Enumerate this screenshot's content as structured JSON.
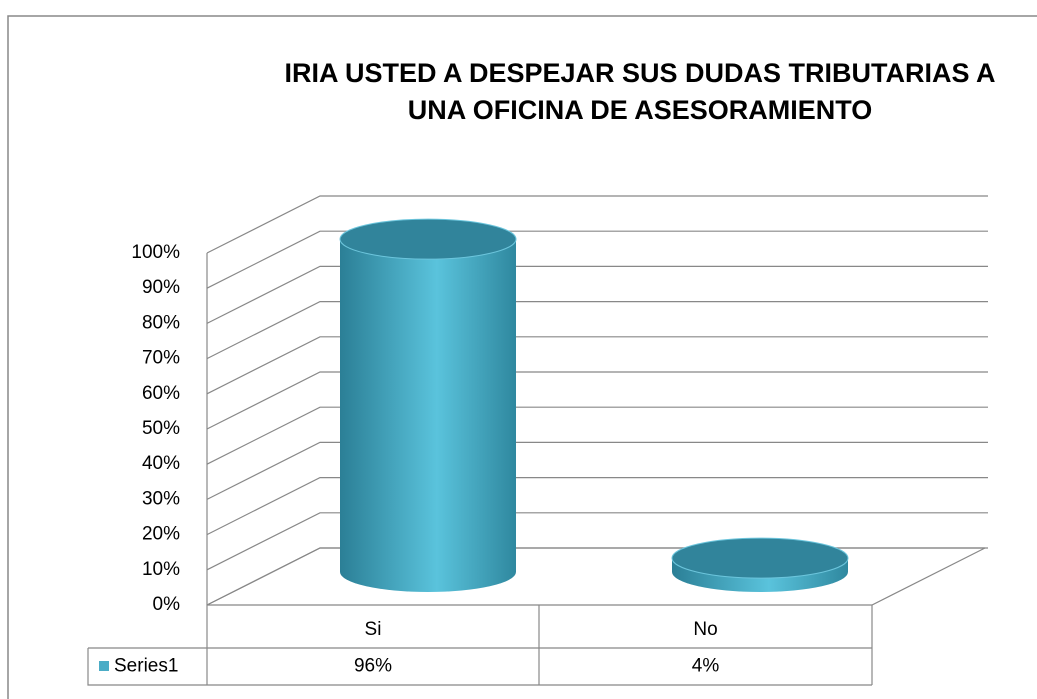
{
  "chart_data": {
    "type": "bar3d",
    "title": [
      "IRIA USTED A DESPEJAR SUS DUDAS TRIBUTARIAS A",
      "UNA OFICINA DE ASESORAMIENTO"
    ],
    "categories": [
      "Si",
      "No"
    ],
    "series": [
      {
        "name": "Series1",
        "color": "#4bacc6",
        "values": [
          96,
          4
        ],
        "value_labels": [
          "96%",
          "4%"
        ]
      }
    ],
    "ylim": [
      0,
      100
    ],
    "yticks": [
      {
        "value": 0,
        "label": "0%"
      },
      {
        "value": 10,
        "label": "10%"
      },
      {
        "value": 20,
        "label": "20%"
      },
      {
        "value": 30,
        "label": "30%"
      },
      {
        "value": 40,
        "label": "40%"
      },
      {
        "value": 50,
        "label": "50%"
      },
      {
        "value": 60,
        "label": "60%"
      },
      {
        "value": 70,
        "label": "70%"
      },
      {
        "value": 80,
        "label": "80%"
      },
      {
        "value": 90,
        "label": "90%"
      },
      {
        "value": 100,
        "label": "100%"
      }
    ],
    "grid": true
  }
}
